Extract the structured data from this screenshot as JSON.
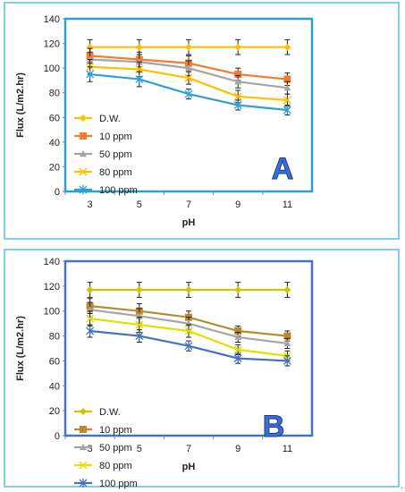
{
  "chart_data": [
    {
      "type": "line",
      "panel_label": "A",
      "xlabel": "pH",
      "ylabel": "Flux (L/m2.hr)",
      "categories": [
        "3",
        "5",
        "7",
        "9",
        "11"
      ],
      "ylim": [
        0,
        140
      ],
      "yticks": [
        "0",
        "20",
        "40",
        "60",
        "80",
        "100",
        "120",
        "140"
      ],
      "grid": false,
      "legend_placement": "left-middle",
      "error_bars": true,
      "series": [
        {
          "name": "D.W.",
          "values": [
            117,
            117,
            117,
            117,
            117
          ],
          "errors": [
            6,
            6,
            6,
            6,
            6
          ],
          "color": "#ffc000",
          "marker": "diamond"
        },
        {
          "name": "10 ppm",
          "values": [
            110,
            107,
            104,
            95,
            91
          ],
          "errors": [
            6,
            6,
            6,
            5,
            5
          ],
          "color": "#f47c30",
          "marker": "square"
        },
        {
          "name": "50 ppm",
          "values": [
            107,
            105,
            100,
            89,
            84
          ],
          "errors": [
            6,
            6,
            6,
            5,
            5
          ],
          "color": "#a5a5a5",
          "marker": "triangle"
        },
        {
          "name": "80 ppm",
          "values": [
            101,
            99,
            92,
            77,
            74
          ],
          "errors": [
            6,
            6,
            5,
            5,
            5
          ],
          "color": "#ffc000",
          "marker": "x"
        },
        {
          "name": "100 ppm",
          "values": [
            95,
            91,
            79,
            70,
            66
          ],
          "errors": [
            6,
            6,
            4,
            4,
            4
          ],
          "color": "#2e9fd8",
          "marker": "star"
        }
      ]
    },
    {
      "type": "line",
      "panel_label": "B",
      "xlabel": "pH",
      "ylabel": "Flux (L/m2.hr)",
      "categories": [
        "3",
        "5",
        "7",
        "9",
        "11"
      ],
      "ylim": [
        0,
        140
      ],
      "yticks": [
        "0",
        "20",
        "40",
        "60",
        "80",
        "100",
        "120",
        "140"
      ],
      "grid": false,
      "legend_placement": "left-middle",
      "error_bars": true,
      "series": [
        {
          "name": "D.W.",
          "values": [
            117,
            117,
            117,
            117,
            117
          ],
          "errors": [
            6,
            6,
            6,
            6,
            6
          ],
          "color": "#d4c400",
          "marker": "diamond"
        },
        {
          "name": "10 ppm",
          "values": [
            104,
            100,
            95,
            84,
            80
          ],
          "errors": [
            6,
            6,
            5,
            4,
            4
          ],
          "color": "#b8892e",
          "marker": "square"
        },
        {
          "name": "50 ppm",
          "values": [
            101,
            96,
            90,
            79,
            74
          ],
          "errors": [
            6,
            6,
            5,
            4,
            4
          ],
          "color": "#a5a5a5",
          "marker": "triangle"
        },
        {
          "name": "80 ppm",
          "values": [
            94,
            89,
            84,
            69,
            64
          ],
          "errors": [
            6,
            6,
            5,
            4,
            4
          ],
          "color": "#e0e000",
          "marker": "x"
        },
        {
          "name": "100 ppm",
          "values": [
            84,
            80,
            72,
            62,
            60
          ],
          "errors": [
            5,
            5,
            4,
            4,
            4
          ],
          "color": "#4472c4",
          "marker": "star"
        }
      ]
    }
  ]
}
